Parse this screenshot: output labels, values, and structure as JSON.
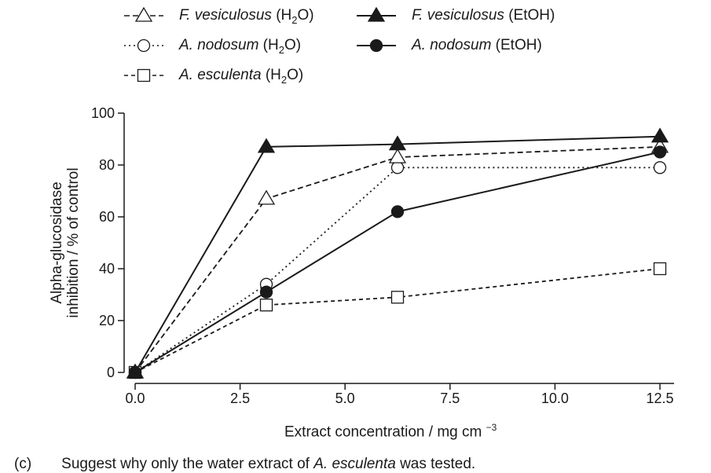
{
  "chart_data": {
    "type": "line",
    "xlabel": "Extract concentration / mg cm",
    "xlabel_unit_exponent": "−3",
    "ylabel_lines": [
      "Alpha-glucosidase",
      "inhibition / % of control"
    ],
    "xlim": [
      0,
      12.5
    ],
    "ylim": [
      0,
      100
    ],
    "x_ticks": [
      "0.0",
      "2.5",
      "5.0",
      "7.5",
      "10.0",
      "12.5"
    ],
    "y_ticks": [
      "0",
      "20",
      "40",
      "60",
      "80",
      "100"
    ],
    "grid": false,
    "legend_placement": "top",
    "x": [
      0,
      3.125,
      6.25,
      12.5
    ],
    "series": [
      {
        "name": "F. vesiculosus (H2O)",
        "species": "F. vesiculosus",
        "solvent": "(H",
        "solvent_sub": "2",
        "solvent_end": "O)",
        "marker": "open-triangle",
        "line": "dashed",
        "values": [
          0,
          67,
          83,
          87
        ]
      },
      {
        "name": "A. nodosum (H2O)",
        "species": "A. nodosum",
        "solvent": "(H",
        "solvent_sub": "2",
        "solvent_end": "O)",
        "marker": "open-circle",
        "line": "dotted",
        "values": [
          0,
          34,
          79,
          79
        ]
      },
      {
        "name": "A. esculenta (H2O)",
        "species": "A. esculenta",
        "solvent": "(H",
        "solvent_sub": "2",
        "solvent_end": "O)",
        "marker": "open-square",
        "line": "short-dashed",
        "values": [
          0,
          26,
          29,
          40
        ]
      },
      {
        "name": "F. vesiculosus (EtOH)",
        "species": "F. vesiculosus",
        "solvent": "(EtOH)",
        "solvent_sub": "",
        "solvent_end": "",
        "marker": "filled-triangle",
        "line": "solid",
        "values": [
          0,
          87,
          88,
          91
        ]
      },
      {
        "name": "A. nodosum (EtOH)",
        "species": "A. nodosum",
        "solvent": "(EtOH)",
        "solvent_sub": "",
        "solvent_end": "",
        "marker": "filled-circle",
        "line": "solid",
        "values": [
          0,
          31,
          62,
          85
        ]
      }
    ],
    "colors": {
      "ink": "#1a1a1a",
      "background": "#ffffff"
    }
  },
  "question": {
    "label": "(c)",
    "text_before": "Suggest why only the water extract of ",
    "text_italic": "A. esculenta",
    "text_after": " was tested."
  }
}
